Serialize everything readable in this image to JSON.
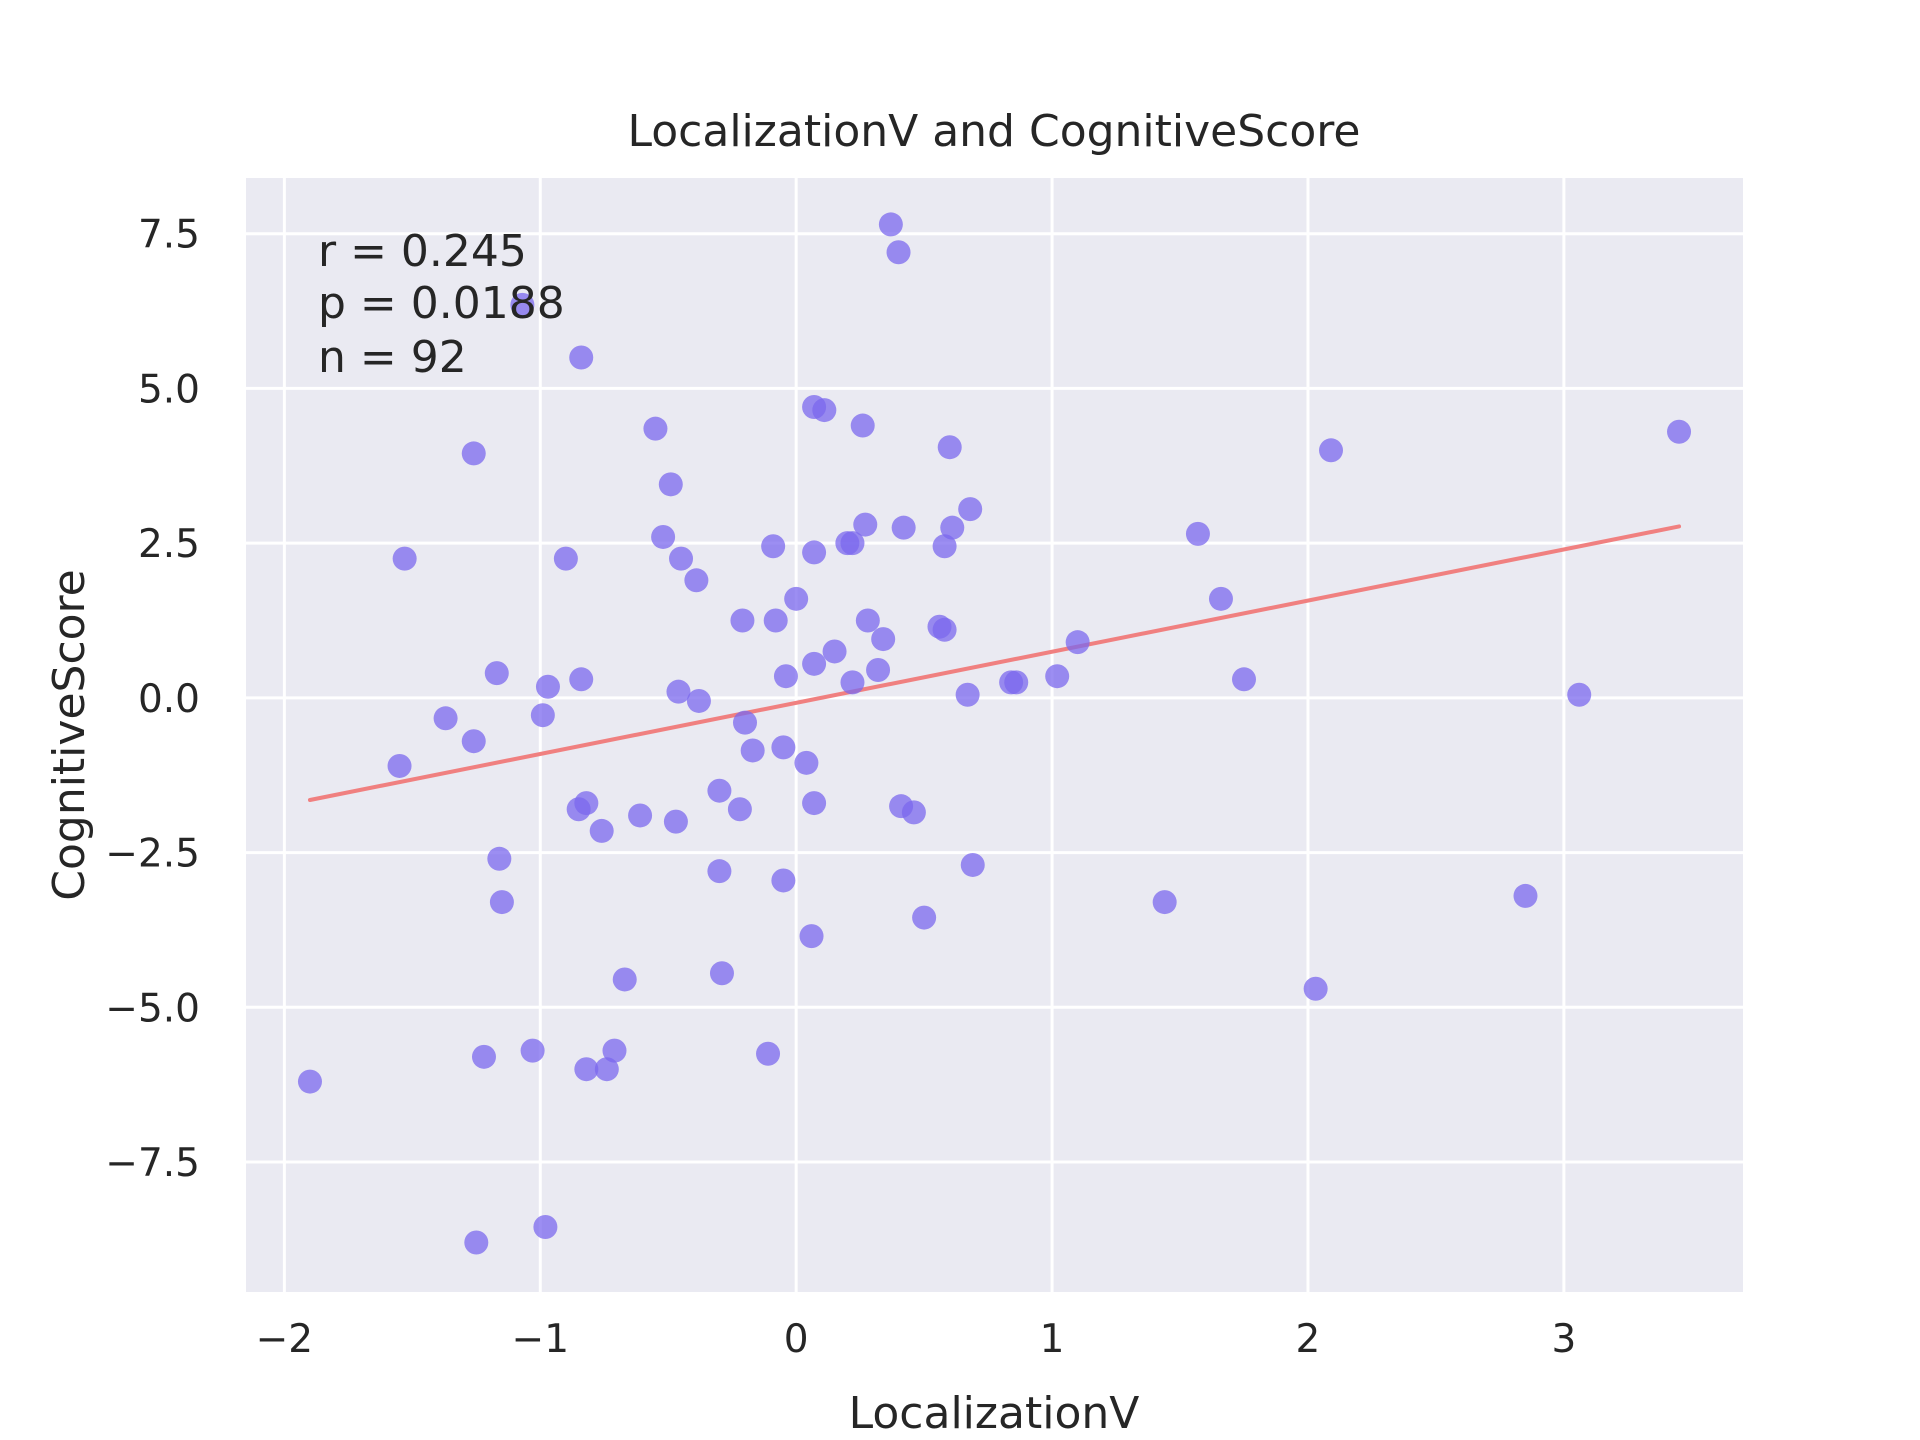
{
  "chart_data": {
    "type": "scatter",
    "title": "LocalizationV and CognitiveScore",
    "xlabel": "LocalizationV",
    "ylabel": "CognitiveScore",
    "xlim": [
      -2.15,
      3.7
    ],
    "ylim": [
      -9.6,
      8.4
    ],
    "xticks": [
      -2,
      -1,
      0,
      1,
      2,
      3
    ],
    "xtick_labels": [
      "−2",
      "−1",
      "0",
      "1",
      "2",
      "3"
    ],
    "yticks": [
      -7.5,
      -5.0,
      -2.5,
      0.0,
      2.5,
      5.0,
      7.5
    ],
    "ytick_labels": [
      "−7.5",
      "−5.0",
      "−2.5",
      "0.0",
      "2.5",
      "5.0",
      "7.5"
    ],
    "grid": true,
    "background": "#eaeaf2",
    "point_color": "#7b68ee",
    "line_color": "#f08080",
    "annotation": [
      "r = 0.245",
      "p = 0.0188",
      "n = 92"
    ],
    "fit_line": {
      "x": [
        -1.9,
        3.45
      ],
      "y": [
        -1.65,
        2.77
      ]
    },
    "points": [
      {
        "x": -1.9,
        "y": -6.2
      },
      {
        "x": -1.55,
        "y": -1.1
      },
      {
        "x": -1.53,
        "y": 2.25
      },
      {
        "x": -1.37,
        "y": -0.33
      },
      {
        "x": -1.26,
        "y": 3.95
      },
      {
        "x": -1.26,
        "y": -0.7
      },
      {
        "x": -1.25,
        "y": -8.8
      },
      {
        "x": -1.22,
        "y": -5.8
      },
      {
        "x": -1.17,
        "y": 0.4
      },
      {
        "x": -1.16,
        "y": -2.6
      },
      {
        "x": -1.15,
        "y": -3.3
      },
      {
        "x": -1.07,
        "y": 6.35
      },
      {
        "x": -1.03,
        "y": -5.7
      },
      {
        "x": -0.99,
        "y": -0.28
      },
      {
        "x": -0.98,
        "y": -8.55
      },
      {
        "x": -0.97,
        "y": 0.18
      },
      {
        "x": -0.9,
        "y": 2.25
      },
      {
        "x": -0.85,
        "y": -1.8
      },
      {
        "x": -0.84,
        "y": 5.5
      },
      {
        "x": -0.84,
        "y": 0.3
      },
      {
        "x": -0.82,
        "y": -1.7
      },
      {
        "x": -0.82,
        "y": -6.0
      },
      {
        "x": -0.76,
        "y": -2.15
      },
      {
        "x": -0.74,
        "y": -6.0
      },
      {
        "x": -0.71,
        "y": -5.7
      },
      {
        "x": -0.67,
        "y": -4.55
      },
      {
        "x": -0.61,
        "y": -1.9
      },
      {
        "x": -0.55,
        "y": 4.35
      },
      {
        "x": -0.52,
        "y": 2.6
      },
      {
        "x": -0.49,
        "y": 3.45
      },
      {
        "x": -0.47,
        "y": -2.0
      },
      {
        "x": -0.46,
        "y": 0.1
      },
      {
        "x": -0.45,
        "y": 2.25
      },
      {
        "x": -0.39,
        "y": 1.9
      },
      {
        "x": -0.38,
        "y": -0.05
      },
      {
        "x": -0.3,
        "y": -1.5
      },
      {
        "x": -0.3,
        "y": -2.8
      },
      {
        "x": -0.29,
        "y": -4.45
      },
      {
        "x": -0.22,
        "y": -1.8
      },
      {
        "x": -0.21,
        "y": 1.25
      },
      {
        "x": -0.2,
        "y": -0.4
      },
      {
        "x": -0.17,
        "y": -0.85
      },
      {
        "x": -0.11,
        "y": -5.75
      },
      {
        "x": -0.09,
        "y": 2.45
      },
      {
        "x": -0.08,
        "y": 1.25
      },
      {
        "x": -0.05,
        "y": -0.8
      },
      {
        "x": -0.05,
        "y": -2.95
      },
      {
        "x": -0.04,
        "y": 0.35
      },
      {
        "x": 0.0,
        "y": 1.6
      },
      {
        "x": 0.04,
        "y": -1.05
      },
      {
        "x": 0.06,
        "y": -3.85
      },
      {
        "x": 0.07,
        "y": 4.7
      },
      {
        "x": 0.07,
        "y": 2.35
      },
      {
        "x": 0.07,
        "y": 0.55
      },
      {
        "x": 0.07,
        "y": -1.7
      },
      {
        "x": 0.11,
        "y": 4.65
      },
      {
        "x": 0.15,
        "y": 0.75
      },
      {
        "x": 0.2,
        "y": 2.5
      },
      {
        "x": 0.22,
        "y": 2.5
      },
      {
        "x": 0.22,
        "y": 0.25
      },
      {
        "x": 0.26,
        "y": 4.4
      },
      {
        "x": 0.27,
        "y": 2.8
      },
      {
        "x": 0.28,
        "y": 1.25
      },
      {
        "x": 0.32,
        "y": 0.45
      },
      {
        "x": 0.34,
        "y": 0.95
      },
      {
        "x": 0.37,
        "y": 7.65
      },
      {
        "x": 0.4,
        "y": 7.2
      },
      {
        "x": 0.41,
        "y": -1.75
      },
      {
        "x": 0.42,
        "y": 2.75
      },
      {
        "x": 0.46,
        "y": -1.85
      },
      {
        "x": 0.5,
        "y": -3.55
      },
      {
        "x": 0.56,
        "y": 1.15
      },
      {
        "x": 0.58,
        "y": 1.1
      },
      {
        "x": 0.58,
        "y": 2.45
      },
      {
        "x": 0.6,
        "y": 4.05
      },
      {
        "x": 0.61,
        "y": 2.75
      },
      {
        "x": 0.67,
        "y": 0.05
      },
      {
        "x": 0.68,
        "y": 3.05
      },
      {
        "x": 0.69,
        "y": -2.7
      },
      {
        "x": 0.84,
        "y": 0.25
      },
      {
        "x": 0.86,
        "y": 0.25
      },
      {
        "x": 1.02,
        "y": 0.35
      },
      {
        "x": 1.1,
        "y": 0.9
      },
      {
        "x": 1.44,
        "y": -3.3
      },
      {
        "x": 1.57,
        "y": 2.65
      },
      {
        "x": 1.66,
        "y": 1.6
      },
      {
        "x": 1.75,
        "y": 0.3
      },
      {
        "x": 2.03,
        "y": -4.7
      },
      {
        "x": 2.09,
        "y": 4.0
      },
      {
        "x": 2.85,
        "y": -3.2
      },
      {
        "x": 3.06,
        "y": 0.05
      },
      {
        "x": 3.45,
        "y": 4.3
      }
    ]
  }
}
